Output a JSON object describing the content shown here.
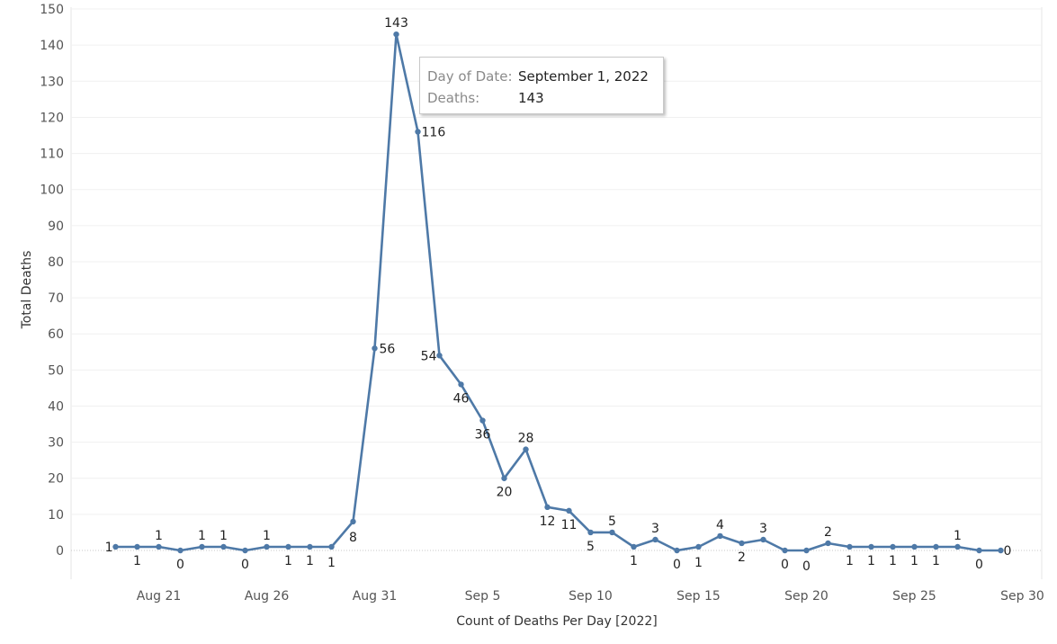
{
  "chart_data": {
    "type": "line",
    "xlabel": "Count of Deaths Per Day [2022]",
    "ylabel": "Total Deaths",
    "ylim": [
      0,
      150
    ],
    "yticks": [
      0,
      10,
      20,
      30,
      40,
      50,
      60,
      70,
      80,
      90,
      100,
      110,
      120,
      130,
      140,
      150
    ],
    "xrange": [
      "2022-08-18",
      "2022-09-30"
    ],
    "xticks": [
      {
        "date": "2022-08-21",
        "label": "Aug 21"
      },
      {
        "date": "2022-08-26",
        "label": "Aug 26"
      },
      {
        "date": "2022-08-31",
        "label": "Aug 31"
      },
      {
        "date": "2022-09-05",
        "label": "Sep 5"
      },
      {
        "date": "2022-09-10",
        "label": "Sep 10"
      },
      {
        "date": "2022-09-15",
        "label": "Sep 15"
      },
      {
        "date": "2022-09-20",
        "label": "Sep 20"
      },
      {
        "date": "2022-09-25",
        "label": "Sep 25"
      },
      {
        "date": "2022-09-30",
        "label": "Sep 30"
      }
    ],
    "line_color": "#4e79a7",
    "grid": "horizontal",
    "x": [
      "2022-08-19",
      "2022-08-20",
      "2022-08-21",
      "2022-08-22",
      "2022-08-23",
      "2022-08-24",
      "2022-08-25",
      "2022-08-26",
      "2022-08-27",
      "2022-08-28",
      "2022-08-29",
      "2022-08-30",
      "2022-08-31",
      "2022-09-01",
      "2022-09-02",
      "2022-09-03",
      "2022-09-04",
      "2022-09-05",
      "2022-09-06",
      "2022-09-07",
      "2022-09-08",
      "2022-09-09",
      "2022-09-10",
      "2022-09-11",
      "2022-09-12",
      "2022-09-13",
      "2022-09-14",
      "2022-09-15",
      "2022-09-16",
      "2022-09-17",
      "2022-09-18",
      "2022-09-19",
      "2022-09-20",
      "2022-09-21",
      "2022-09-22",
      "2022-09-23",
      "2022-09-24",
      "2022-09-25",
      "2022-09-26",
      "2022-09-27",
      "2022-09-28",
      "2022-09-29"
    ],
    "values": [
      1,
      1,
      1,
      0,
      1,
      1,
      0,
      1,
      1,
      1,
      1,
      8,
      56,
      143,
      116,
      54,
      46,
      36,
      20,
      28,
      12,
      11,
      5,
      5,
      1,
      3,
      0,
      1,
      4,
      2,
      3,
      0,
      0,
      2,
      1,
      1,
      1,
      1,
      1,
      1,
      0,
      0
    ]
  },
  "tooltip": {
    "date_key": "Day of Date:",
    "date_value": "September 1, 2022",
    "deaths_key": "Deaths:",
    "deaths_value": "143"
  }
}
